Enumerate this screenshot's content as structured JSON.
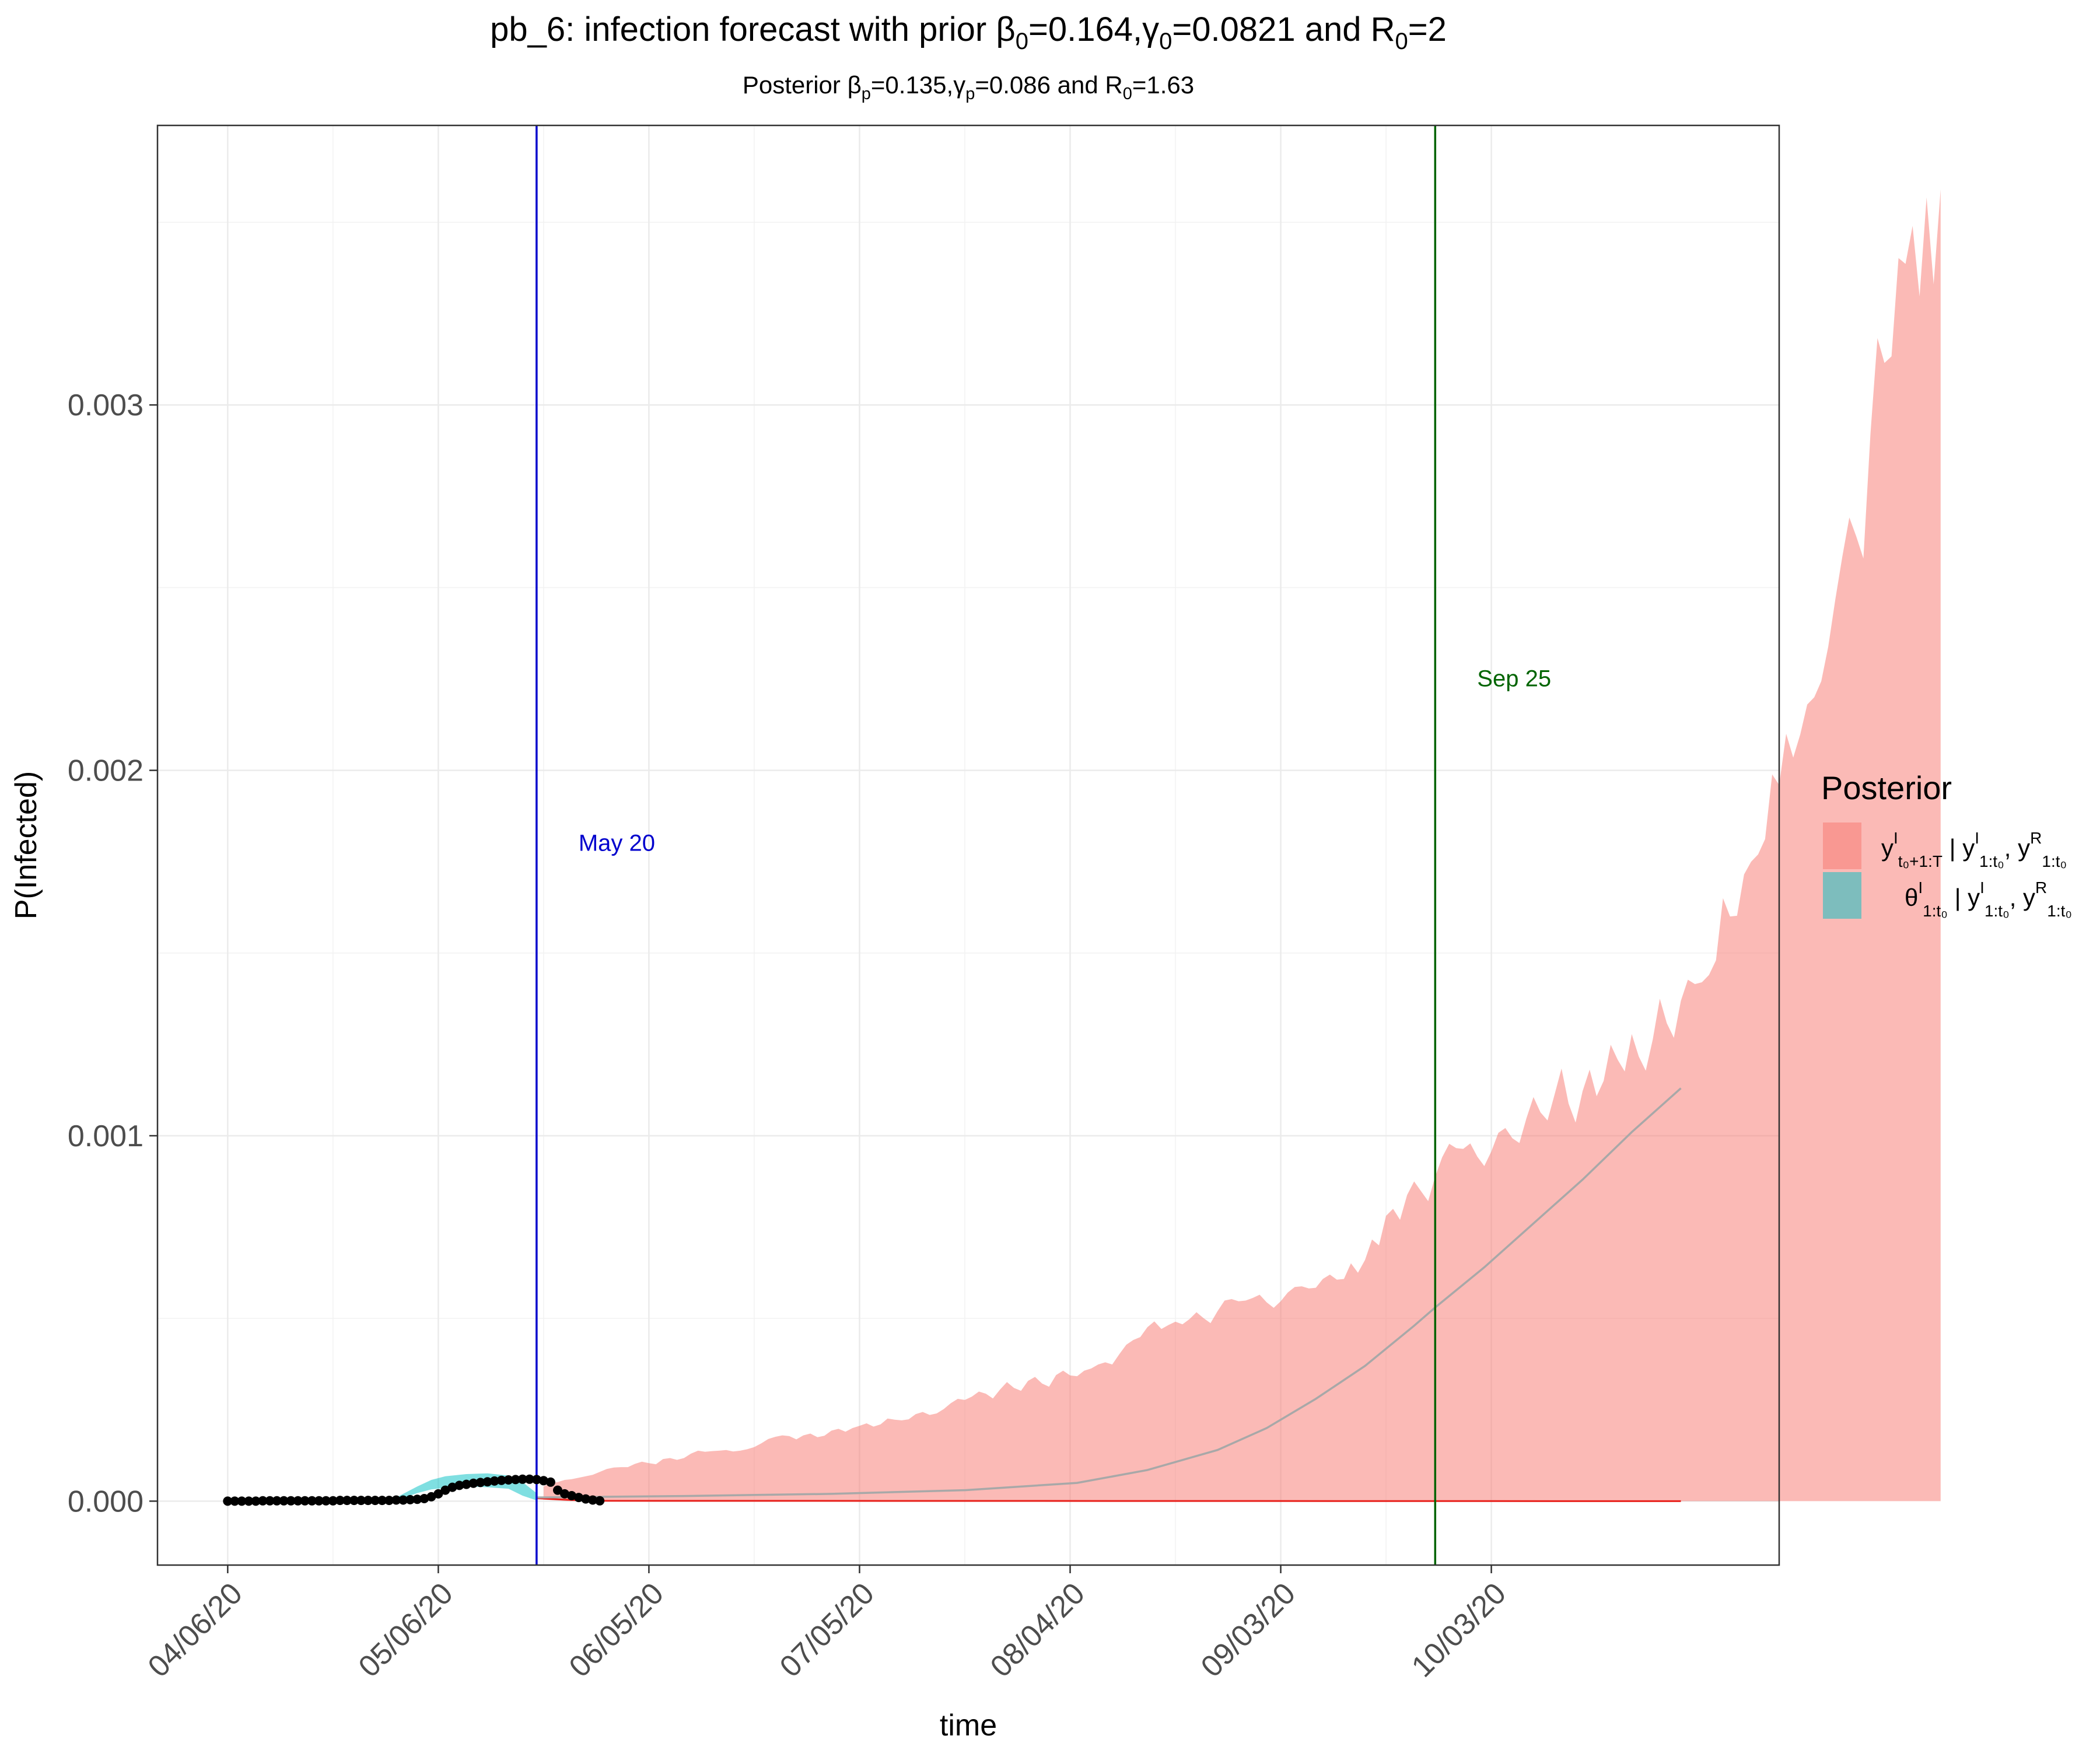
{
  "chart_data": {
    "type": "area",
    "title": {
      "prefix": "pb_6: infection forecast with prior ",
      "beta_sym": "β",
      "beta_sub": "0",
      "beta_val": "=0.164,",
      "gamma_sym": "γ",
      "gamma_sub": "0",
      "gamma_val": "=0.0821 and ",
      "r_sym": "R",
      "r_sub": "0",
      "r_val": "=2"
    },
    "subtitle": {
      "prefix": "Posterior ",
      "beta_sym": "β",
      "beta_sub": "p",
      "beta_val": "=0.135,",
      "gamma_sym": "γ",
      "gamma_sub": "p",
      "gamma_val": "=0.086 and ",
      "r_sym": "R",
      "r_sub": "0",
      "r_val": "=1.63"
    },
    "xlabel": "time",
    "ylabel": "P(Infected)",
    "x_start_date": "2020-04-06",
    "xlim": [
      "2020-03-27",
      "2020-11-13"
    ],
    "ylim": [
      -0.000175,
      0.003765
    ],
    "x_ticks": [
      {
        "date": "2020-04-06",
        "label": "04/06/20"
      },
      {
        "date": "2020-05-06",
        "label": "05/06/20"
      },
      {
        "date": "2020-06-05",
        "label": "06/05/20"
      },
      {
        "date": "2020-07-05",
        "label": "07/05/20"
      },
      {
        "date": "2020-08-04",
        "label": "08/04/20"
      },
      {
        "date": "2020-09-03",
        "label": "09/03/20"
      },
      {
        "date": "2020-10-03",
        "label": "10/03/20"
      }
    ],
    "y_ticks": [
      {
        "value": 0.0,
        "label": "0.000"
      },
      {
        "value": 0.001,
        "label": "0.001"
      },
      {
        "value": 0.002,
        "label": "0.002"
      },
      {
        "value": 0.003,
        "label": "0.003"
      }
    ],
    "grid": true,
    "vlines": [
      {
        "date": "2020-05-20",
        "color": "#0000cd",
        "label": "May 20",
        "label_y": 0.00178
      },
      {
        "date": "2020-09-25",
        "color": "#006400",
        "label": "Sep 25",
        "label_y": 0.00223
      }
    ],
    "legend": {
      "title": "Posterior",
      "placement": "right",
      "entries": [
        {
          "color": "#f8766d",
          "label": "yᴵ_{t0+1:T} | yᴵ_{1:t0}, yᴿ_{1:t0}"
        },
        {
          "color": "#00bfc4",
          "label": "θᴵ_{1:t0} | yᴵ_{1:t0}, yᴿ_{1:t0}"
        }
      ]
    },
    "observed_points": {
      "color": "#000000",
      "x_start": "2020-04-06",
      "x_step_days": 1,
      "y": [
        0.0,
        0.0,
        0.0,
        0.0,
        0.0,
        1e-06,
        1e-06,
        1e-06,
        1e-06,
        1e-06,
        1e-06,
        1e-06,
        1e-06,
        1e-06,
        1e-06,
        1e-06,
        2e-06,
        2e-06,
        2e-06,
        2e-06,
        2e-06,
        2e-06,
        2e-06,
        2e-06,
        3e-06,
        3e-06,
        4e-06,
        5e-06,
        7e-06,
        1.2e-05,
        2e-05,
        3e-05,
        3.8e-05,
        4.3e-05,
        4.6e-05,
        4.9e-05,
        5.1e-05,
        5.3e-05,
        5.5e-05,
        5.7e-05,
        5.8e-05,
        5.9e-05,
        6e-05,
        6e-05,
        5.9e-05,
        5.6e-05,
        5.2e-05,
        3e-05,
        2e-05,
        1.5e-05,
        1e-05,
        6e-06,
        3e-06,
        1e-06
      ]
    },
    "fit_band": {
      "color": "#00bfc4",
      "x": [
        "2020-04-06",
        "2020-04-20",
        "2020-04-30",
        "2020-05-03",
        "2020-05-05",
        "2020-05-07",
        "2020-05-10",
        "2020-05-13",
        "2020-05-16",
        "2020-05-18",
        "2020-05-20"
      ],
      "upper": [
        2e-06,
        3e-06,
        1e-05,
        4e-05,
        5.8e-05,
        6.8e-05,
        7.4e-05,
        7.6e-05,
        7e-05,
        5.2e-05,
        2.2e-05
      ],
      "lower": [
        0.0,
        0.0,
        2e-06,
        2.2e-05,
        3.2e-05,
        3.6e-05,
        4e-05,
        3.8e-05,
        3.4e-05,
        1.5e-05,
        2e-06
      ]
    },
    "forecast_band": {
      "color": "#f8766d",
      "x_start": "2020-05-21",
      "x_step_days": 1,
      "upper": [
        4e-05,
        5e-05,
        5.2e-05,
        5.8e-05,
        6e-05,
        6.4e-05,
        6.8e-05,
        7.2e-05,
        8e-05,
        8.8e-05,
        9.2e-05,
        9.3e-05,
        9.3e-05,
        0.000102,
        0.000108,
        0.000104,
        0.000101,
        0.000115,
        0.000118,
        0.000113,
        0.000118,
        0.00013,
        0.000138,
        0.000135,
        0.000137,
        0.000138,
        0.00014,
        0.000136,
        0.000138,
        0.000142,
        0.000148,
        0.000158,
        0.00017,
        0.000176,
        0.00018,
        0.000178,
        0.000169,
        0.00018,
        0.000185,
        0.000175,
        0.000179,
        0.000193,
        0.000198,
        0.00019,
        0.0002,
        0.000206,
        0.000213,
        0.000204,
        0.00021,
        0.000226,
        0.000223,
        0.000221,
        0.000224,
        0.000238,
        0.000244,
        0.000236,
        0.00024,
        0.000252,
        0.000268,
        0.00028,
        0.000277,
        0.000286,
        0.0003,
        0.000294,
        0.000281,
        0.000305,
        0.000326,
        0.00031,
        0.000302,
        0.000329,
        0.00034,
        0.000322,
        0.000313,
        0.000345,
        0.000357,
        0.000344,
        0.000342,
        0.000357,
        0.000363,
        0.000374,
        0.00038,
        0.000374,
        0.000402,
        0.000428,
        0.000441,
        0.000449,
        0.000476,
        0.000492,
        0.000471,
        0.000482,
        0.000491,
        0.000484,
        0.000498,
        0.000517,
        0.000501,
        0.000487,
        0.00052,
        0.000549,
        0.000553,
        0.000547,
        0.000549,
        0.000556,
        0.000565,
        0.000544,
        0.000529,
        0.000547,
        0.000571,
        0.000586,
        0.000588,
        0.000582,
        0.000584,
        0.000608,
        0.00062,
        0.000606,
        0.000608,
        0.000651,
        0.000625,
        0.00066,
        0.000716,
        0.0007,
        0.000781,
        0.0008,
        0.00077,
        0.000838,
        0.000875,
        0.000848,
        0.000821,
        0.000888,
        0.000941,
        0.000978,
        0.000966,
        0.000964,
        0.000979,
        0.000943,
        0.000917,
        0.000957,
        0.001008,
        0.001021,
        0.000993,
        0.00098,
        0.001048,
        0.001106,
        0.001064,
        0.001042,
        0.001112,
        0.001184,
        0.001088,
        0.001036,
        0.001122,
        0.001181,
        0.001108,
        0.00115,
        0.001249,
        0.001208,
        0.001176,
        0.001278,
        0.001217,
        0.001178,
        0.001264,
        0.001375,
        0.001308,
        0.001268,
        0.001369,
        0.001427,
        0.001415,
        0.00142,
        0.00144,
        0.00148,
        0.00165,
        0.0016,
        0.001602,
        0.001715,
        0.00175,
        0.00177,
        0.001812,
        0.001989,
        0.00196,
        0.0021,
        0.002035,
        0.002098,
        0.00218,
        0.0022,
        0.002244,
        0.002339,
        0.002468,
        0.002585,
        0.002692,
        0.002639,
        0.00258,
        0.002921,
        0.003183,
        0.003115,
        0.003133,
        0.003402,
        0.003386,
        0.00349,
        0.003297,
        0.003568,
        0.00333,
        0.00359
      ],
      "lower_value": 0.0,
      "lower_ramp": [
        4e-06,
        3e-06,
        2e-06,
        1e-06
      ]
    },
    "mean_line": {
      "color": "#a8a8a8",
      "x": [
        "2020-05-20",
        "2020-06-10",
        "2020-07-01",
        "2020-07-20",
        "2020-08-05",
        "2020-08-15",
        "2020-08-25",
        "2020-09-01",
        "2020-09-08",
        "2020-09-15",
        "2020-09-22",
        "2020-09-25",
        "2020-10-02",
        "2020-10-09",
        "2020-10-16",
        "2020-10-23",
        "2020-10-30"
      ],
      "y": [
        1e-05,
        1.4e-05,
        2e-05,
        3e-05,
        5e-05,
        8.5e-05,
        0.00014,
        0.0002,
        0.00028,
        0.00037,
        0.00048,
        0.00053,
        0.00064,
        0.00076,
        0.00088,
        0.00101,
        0.00113
      ]
    },
    "baseline_line": {
      "color": "#e8211c",
      "x": [
        "2020-05-20",
        "2020-05-24",
        "2020-05-28",
        "2020-10-30"
      ],
      "y": [
        8e-06,
        4e-06,
        1e-06,
        0.0
      ]
    }
  }
}
